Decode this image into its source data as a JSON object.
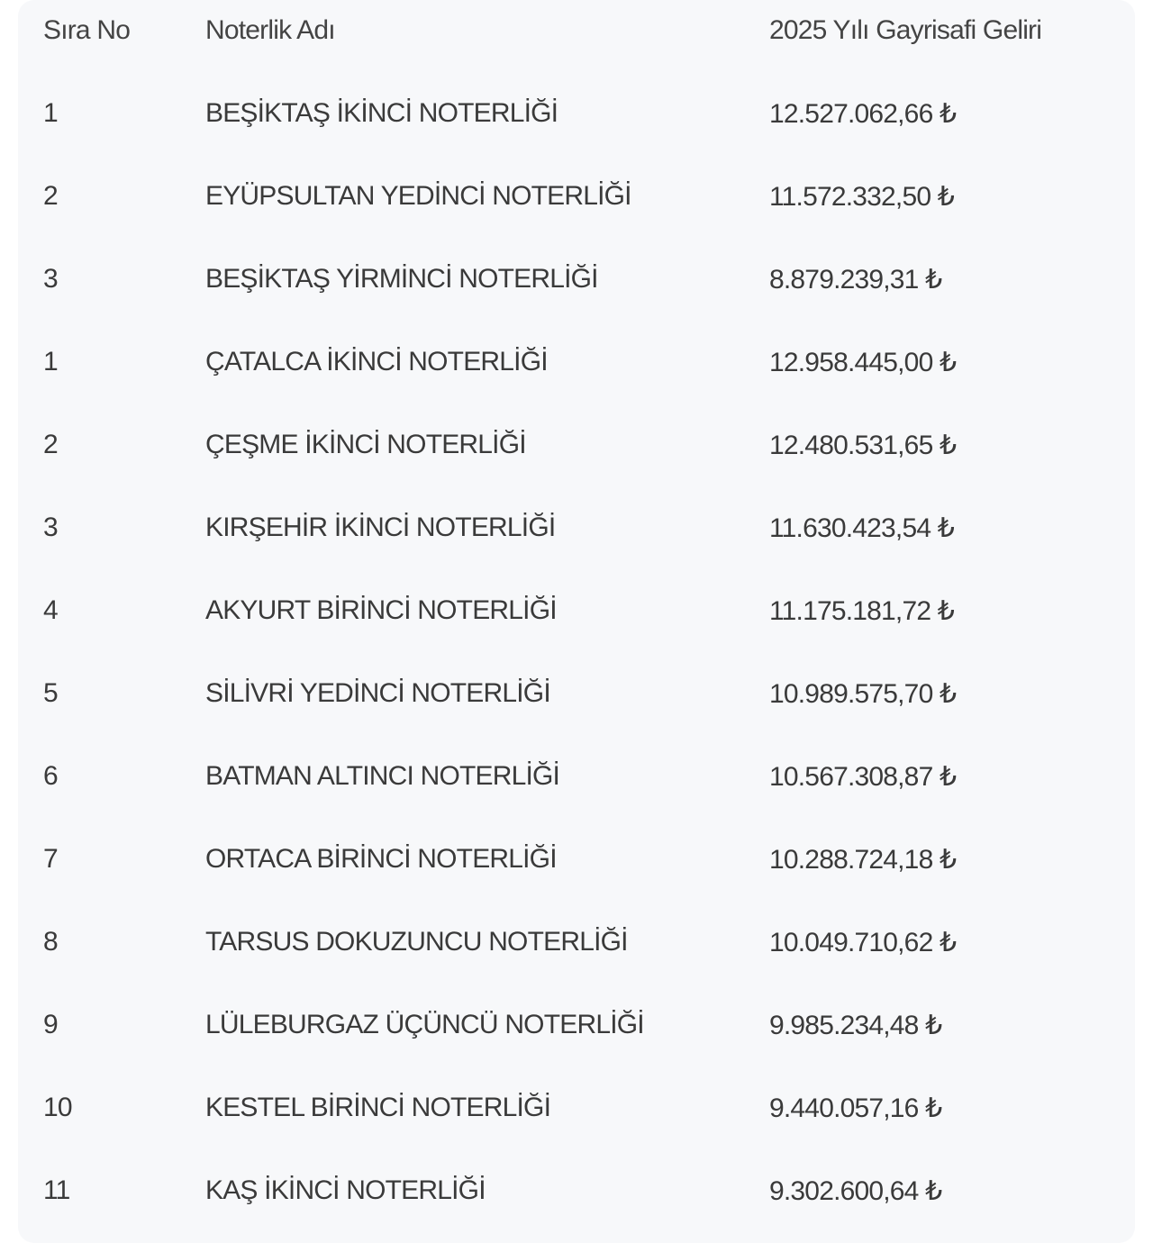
{
  "table": {
    "headers": [
      "Sıra No",
      "Noterlik Adı",
      "2025 Yılı Gayrisafi Geliri"
    ],
    "rows": [
      [
        "1",
        "BEŞİKTAŞ İKİNCİ NOTERLİĞİ",
        "12.527.062,66 ₺"
      ],
      [
        "2",
        "EYÜPSULTAN YEDİNCİ NOTERLİĞİ",
        "11.572.332,50 ₺"
      ],
      [
        "3",
        "BEŞİKTAŞ YİRMİNCİ NOTERLİĞİ",
        "8.879.239,31 ₺"
      ],
      [
        "1",
        "ÇATALCA İKİNCİ NOTERLİĞİ",
        "12.958.445,00 ₺"
      ],
      [
        "2",
        "ÇEŞME İKİNCİ NOTERLİĞİ",
        "12.480.531,65 ₺"
      ],
      [
        "3",
        "KIRŞEHİR İKİNCİ NOTERLİĞİ",
        "11.630.423,54 ₺"
      ],
      [
        "4",
        "AKYURT BİRİNCİ NOTERLİĞİ",
        "11.175.181,72 ₺"
      ],
      [
        "5",
        "SİLİVRİ YEDİNCİ NOTERLİĞİ",
        "10.989.575,70 ₺"
      ],
      [
        "6",
        "BATMAN ALTINCI NOTERLİĞİ",
        "10.567.308,87 ₺"
      ],
      [
        "7",
        "ORTACA BİRİNCİ NOTERLİĞİ",
        "10.288.724,18 ₺"
      ],
      [
        "8",
        "TARSUS DOKUZUNCU NOTERLİĞİ",
        "10.049.710,62 ₺"
      ],
      [
        "9",
        "LÜLEBURGAZ ÜÇÜNCÜ NOTERLİĞİ",
        "9.985.234,48 ₺"
      ],
      [
        "10",
        "KESTEL BİRİNCİ NOTERLİĞİ",
        "9.440.057,16 ₺"
      ],
      [
        "11",
        "KAŞ İKİNCİ NOTERLİĞİ",
        "9.302.600,64 ₺"
      ]
    ]
  }
}
